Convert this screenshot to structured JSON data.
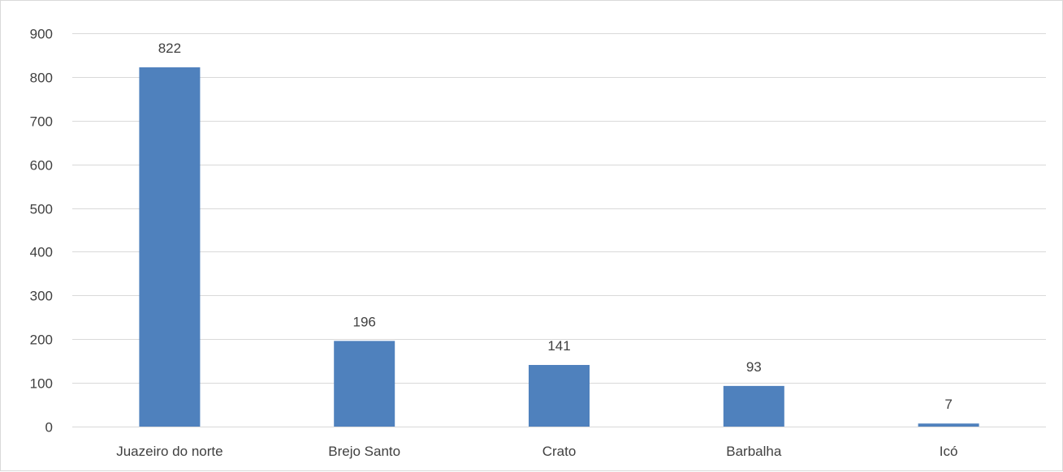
{
  "chart_data": {
    "type": "bar",
    "categories": [
      "Juazeiro do norte",
      "Brejo Santo",
      "Crato",
      "Barbalha",
      "Icó"
    ],
    "values": [
      822,
      196,
      141,
      93,
      7
    ],
    "data_labels": [
      "822",
      "196",
      "141",
      "93",
      "7"
    ],
    "title": "",
    "xlabel": "",
    "ylabel": "",
    "ylim": [
      0,
      900
    ],
    "yticks": [
      "0",
      "100",
      "200",
      "300",
      "400",
      "500",
      "600",
      "700",
      "800",
      "900"
    ],
    "grid": true,
    "legend": "none",
    "bar_color": "#4f81bd",
    "grid_color": "#d9d9d9"
  }
}
